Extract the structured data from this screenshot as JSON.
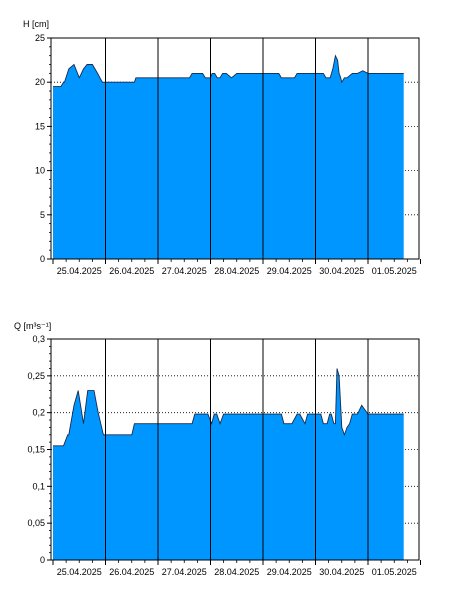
{
  "chart_data": [
    {
      "type": "area",
      "ylabel": "H [cm]",
      "ylim": [
        0,
        25
      ],
      "yticks": [
        "0",
        "5",
        "10",
        "15",
        "20",
        "25"
      ],
      "x_tick_labels": [
        "25.04.2025",
        "26.04.2025",
        "27.04.2025",
        "28.04.2025",
        "29.04.2025",
        "30.04.2025",
        "01.05.2025"
      ],
      "x_day_range": [
        0,
        7
      ],
      "fill_color": "#0096FF",
      "grid": "horizontal dotted, vertical solid at day boundaries",
      "series": [
        {
          "x": [
            0,
            0.15,
            0.2,
            0.22,
            0.3,
            0.4,
            0.5,
            0.58,
            0.65,
            0.75,
            0.85,
            0.94,
            1.0,
            1.55,
            1.58,
            2.0,
            2.6,
            2.65,
            2.85,
            2.9,
            3.0,
            3.03,
            3.08,
            3.13,
            3.18,
            3.23,
            3.3,
            3.4,
            3.5,
            3.6,
            3.7,
            3.8,
            3.9,
            4.3,
            4.35,
            4.5,
            4.6,
            4.65,
            4.8,
            4.85,
            5.15,
            5.2,
            5.28,
            5.33,
            5.38,
            5.42,
            5.45,
            5.48,
            5.5,
            5.55,
            5.6,
            5.7,
            5.8,
            5.9,
            6.0,
            6.5,
            6.68
          ],
          "y": [
            19.5,
            19.5,
            20,
            20,
            21.5,
            22,
            20.5,
            21.5,
            22,
            22,
            21,
            20,
            20,
            20,
            20.5,
            20.5,
            20.5,
            21,
            21,
            20.5,
            20.5,
            21,
            21,
            20.5,
            20.5,
            21,
            21,
            20.5,
            21,
            21,
            21,
            21,
            21,
            21,
            20.5,
            20.5,
            20.5,
            21,
            21,
            21,
            21,
            20.5,
            20.5,
            21.5,
            23,
            22.5,
            21,
            20.5,
            20,
            20.5,
            20.5,
            21,
            21,
            21.3,
            21,
            21,
            21
          ]
        }
      ]
    },
    {
      "type": "area",
      "ylabel": "Q [m³s⁻¹]",
      "ylim": [
        0,
        0.3
      ],
      "yticks": [
        "0",
        "0,05",
        "0,1",
        "0,15",
        "0,2",
        "0,25",
        "0,3"
      ],
      "x_tick_labels": [
        "25.04.2025",
        "26.04.2025",
        "27.04.2025",
        "28.04.2025",
        "29.04.2025",
        "30.04.2025",
        "01.05.2025"
      ],
      "x_day_range": [
        0,
        7
      ],
      "fill_color": "#0096FF",
      "grid": "horizontal dotted, vertical solid at day boundaries",
      "series": [
        {
          "x": [
            0,
            0.2,
            0.28,
            0.3,
            0.4,
            0.48,
            0.58,
            0.66,
            0.72,
            0.78,
            0.86,
            0.96,
            1.0,
            1.5,
            1.55,
            2.0,
            2.65,
            2.7,
            2.95,
            3.02,
            3.07,
            3.12,
            3.18,
            3.25,
            3.35,
            3.5,
            3.6,
            3.7,
            4.0,
            4.35,
            4.4,
            4.55,
            4.65,
            4.7,
            4.8,
            4.85,
            5.1,
            5.15,
            5.22,
            5.27,
            5.3,
            5.35,
            5.38,
            5.41,
            5.45,
            5.5,
            5.55,
            5.6,
            5.65,
            5.7,
            5.8,
            5.88,
            6.0,
            6.68
          ],
          "y": [
            0.155,
            0.155,
            0.17,
            0.17,
            0.21,
            0.23,
            0.185,
            0.23,
            0.23,
            0.23,
            0.2,
            0.17,
            0.17,
            0.17,
            0.185,
            0.185,
            0.185,
            0.198,
            0.198,
            0.185,
            0.198,
            0.198,
            0.185,
            0.198,
            0.198,
            0.198,
            0.198,
            0.198,
            0.198,
            0.198,
            0.185,
            0.185,
            0.198,
            0.198,
            0.185,
            0.198,
            0.198,
            0.185,
            0.185,
            0.198,
            0.198,
            0.185,
            0.185,
            0.26,
            0.25,
            0.18,
            0.17,
            0.18,
            0.185,
            0.198,
            0.198,
            0.21,
            0.198,
            0.198
          ]
        }
      ]
    }
  ]
}
